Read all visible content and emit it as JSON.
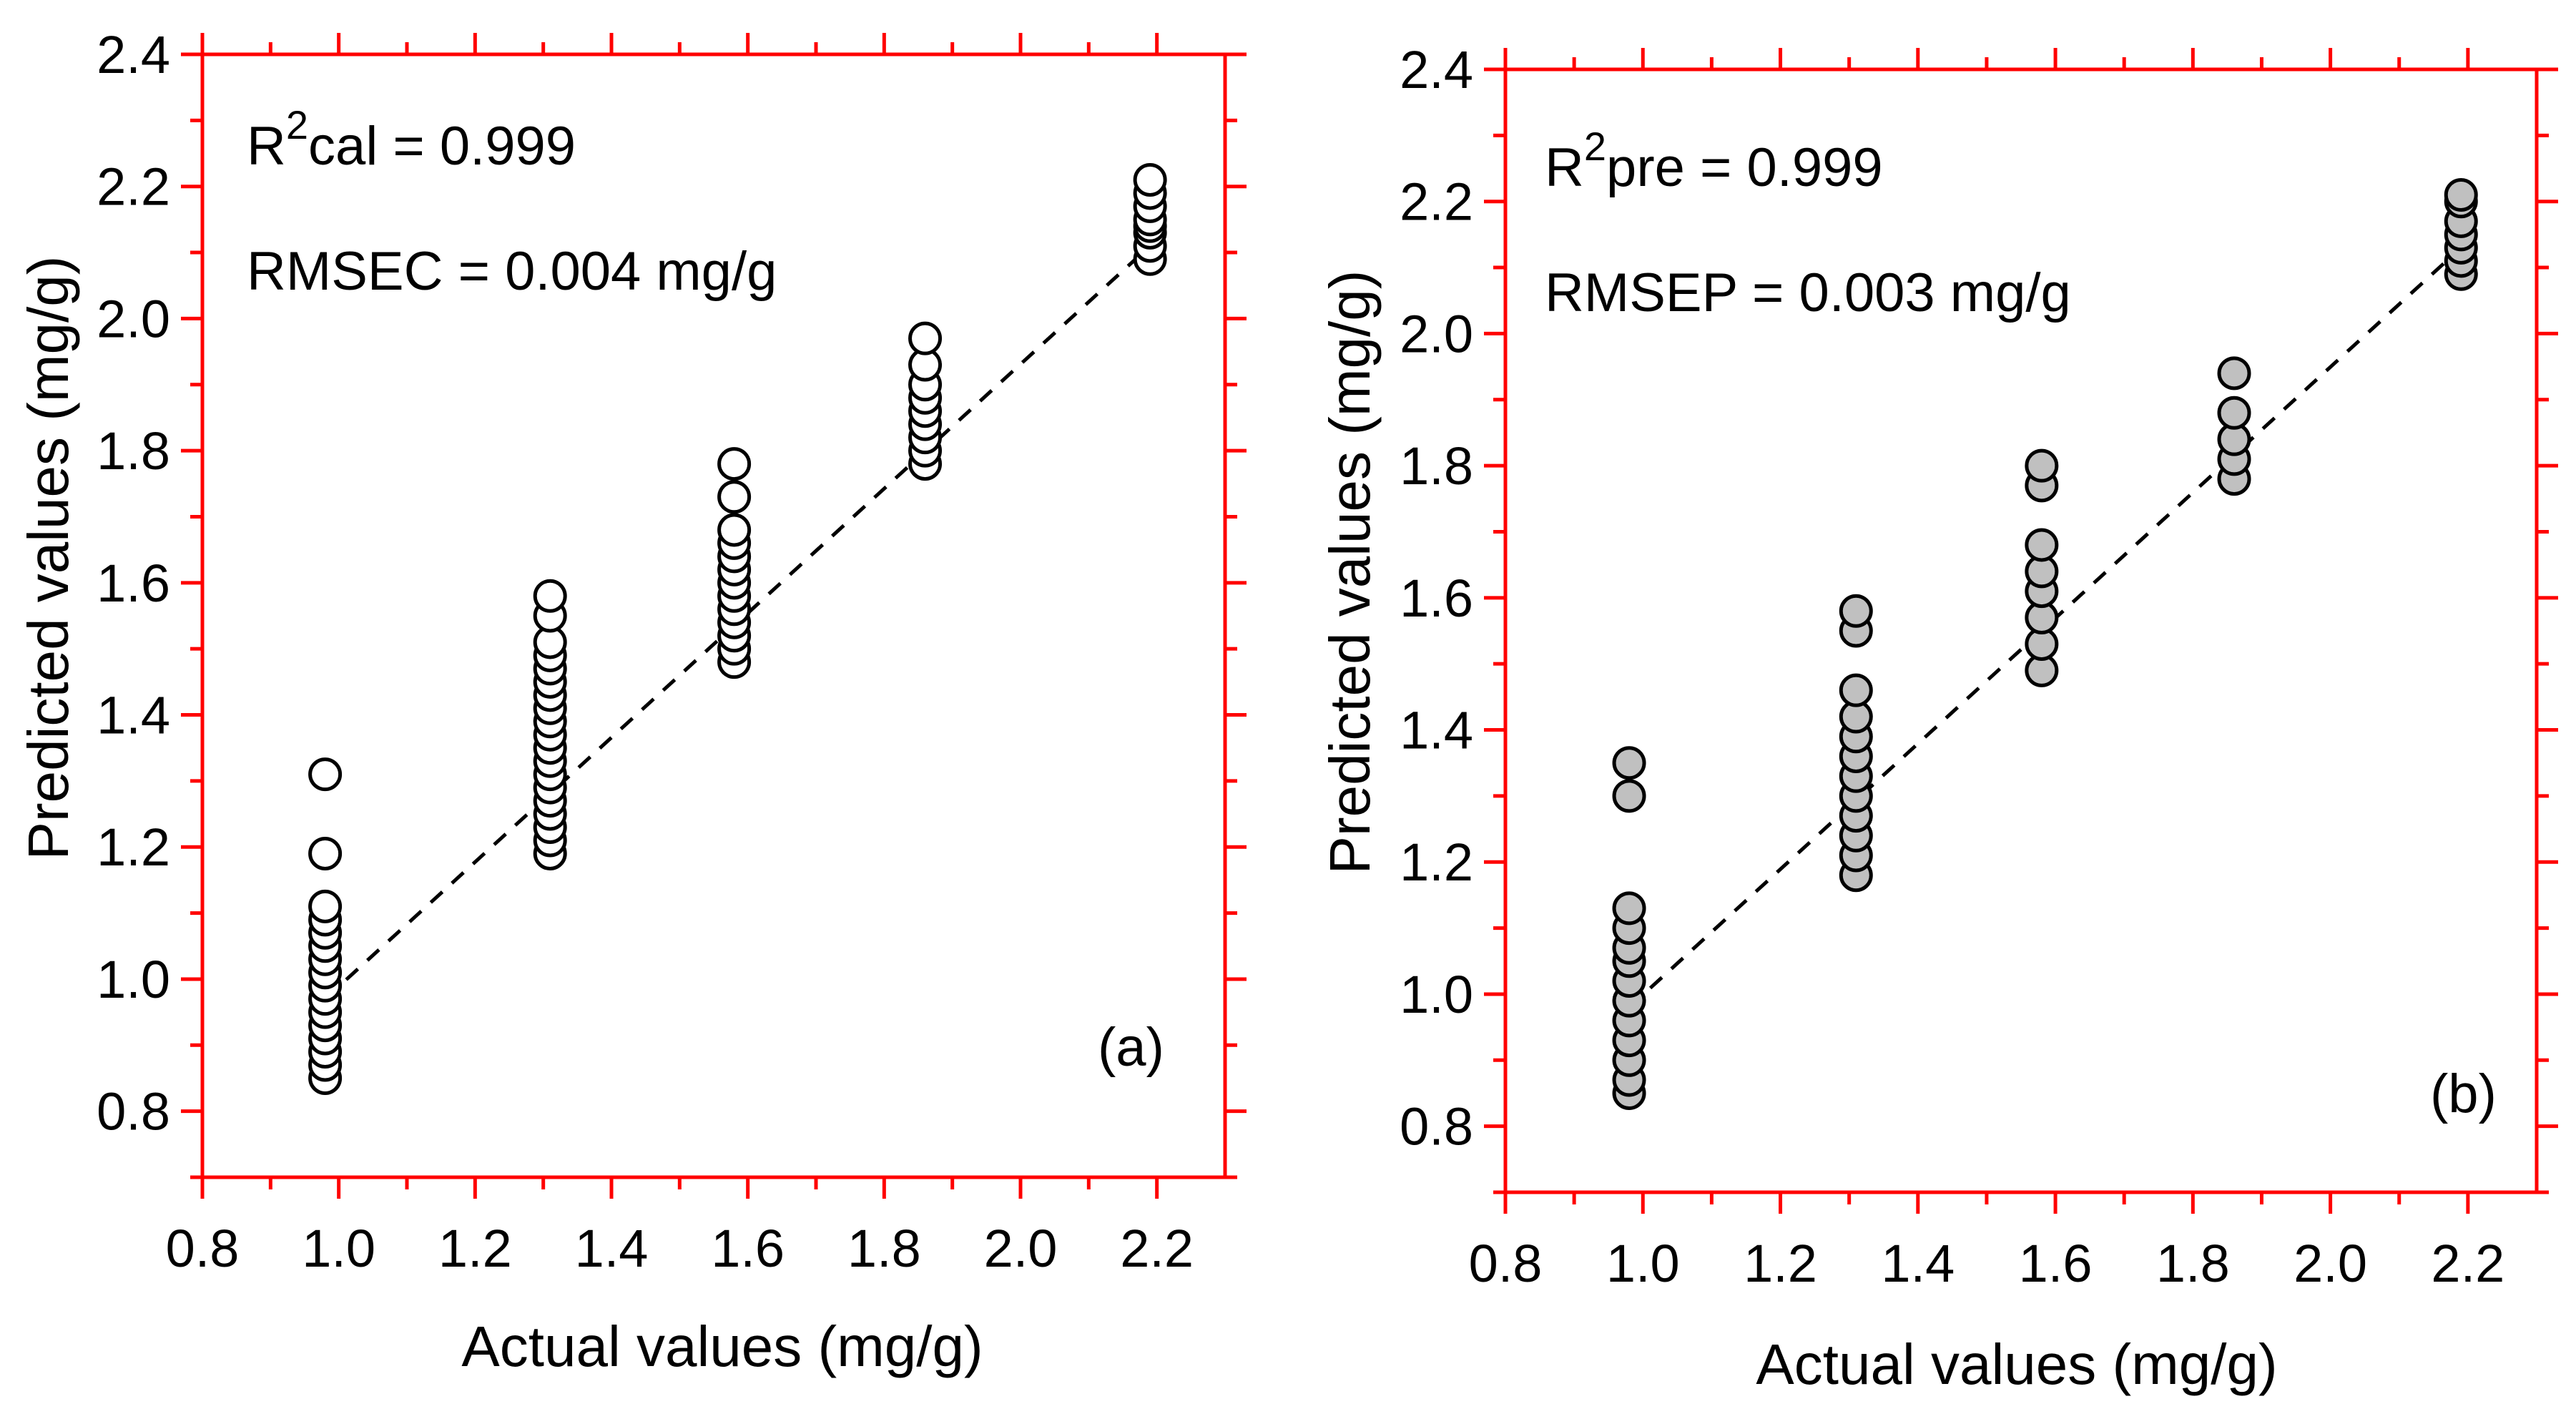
{
  "colors": {
    "frame": "#ff0000",
    "text": "#000000",
    "open_marker_fill": "#ffffff",
    "filled_marker_fill": "#c0c0c0",
    "fit_line": "#000000"
  },
  "chart_data": [
    {
      "type": "scatter",
      "panel_label": "(a)",
      "xlabel": "Actual values (mg/g)",
      "ylabel": "Predicted values (mg/g)",
      "xlim": [
        0.8,
        2.3
      ],
      "ylim": [
        0.7,
        2.4
      ],
      "xticks": [
        "0.8",
        "1.0",
        "1.2",
        "1.4",
        "1.6",
        "1.8",
        "2.0",
        "2.2"
      ],
      "yticks": [
        "0.8",
        "1.0",
        "1.2",
        "1.4",
        "1.6",
        "1.8",
        "2.0",
        "2.2",
        "2.4"
      ],
      "annotation": {
        "r2_base": "R",
        "r2_sup": "2",
        "r2_sub": "cal",
        "r2_value": " = 0.999",
        "rmse": "RMSEC = 0.004 mg/g"
      },
      "marker_style": "open",
      "fit_line": {
        "x": [
          0.98,
          2.19
        ],
        "y": [
          0.97,
          2.11
        ]
      },
      "series": [
        {
          "x": 0.98,
          "y": [
            0.85,
            0.87,
            0.89,
            0.91,
            0.93,
            0.95,
            0.97,
            0.99,
            1.01,
            1.03,
            1.05,
            1.07,
            1.09,
            1.11,
            1.19,
            1.31
          ]
        },
        {
          "x": 1.31,
          "y": [
            1.19,
            1.21,
            1.23,
            1.25,
            1.27,
            1.29,
            1.31,
            1.33,
            1.35,
            1.37,
            1.39,
            1.41,
            1.43,
            1.45,
            1.47,
            1.49,
            1.51,
            1.55,
            1.58
          ]
        },
        {
          "x": 1.58,
          "y": [
            1.48,
            1.5,
            1.52,
            1.54,
            1.56,
            1.58,
            1.6,
            1.62,
            1.64,
            1.66,
            1.68,
            1.73,
            1.78
          ]
        },
        {
          "x": 1.86,
          "y": [
            1.78,
            1.8,
            1.82,
            1.84,
            1.86,
            1.88,
            1.9,
            1.93,
            1.97
          ]
        },
        {
          "x": 2.19,
          "y": [
            2.09,
            2.11,
            2.13,
            2.14,
            2.15,
            2.17,
            2.19,
            2.21
          ]
        }
      ]
    },
    {
      "type": "scatter",
      "panel_label": "(b)",
      "xlabel": "Actual values (mg/g)",
      "ylabel": "Predicted values (mg/g)",
      "xlim": [
        0.8,
        2.3
      ],
      "ylim": [
        0.7,
        2.4
      ],
      "xticks": [
        "0.8",
        "1.0",
        "1.2",
        "1.4",
        "1.6",
        "1.8",
        "2.0",
        "2.2"
      ],
      "yticks": [
        "0.8",
        "1.0",
        "1.2",
        "1.4",
        "1.6",
        "1.8",
        "2.0",
        "2.2",
        "2.4"
      ],
      "annotation": {
        "r2_base": "R",
        "r2_sup": "2",
        "r2_sub": "pre",
        "r2_value": " = 0.999",
        "rmse": "RMSEP = 0.003 mg/g"
      },
      "marker_style": "filled",
      "fit_line": {
        "x": [
          0.98,
          2.19
        ],
        "y": [
          0.98,
          2.13
        ]
      },
      "series": [
        {
          "x": 0.98,
          "y": [
            0.85,
            0.87,
            0.9,
            0.93,
            0.96,
            0.99,
            1.02,
            1.05,
            1.07,
            1.1,
            1.13,
            1.3,
            1.35
          ]
        },
        {
          "x": 1.31,
          "y": [
            1.18,
            1.21,
            1.24,
            1.27,
            1.3,
            1.33,
            1.36,
            1.39,
            1.42,
            1.46,
            1.55,
            1.58
          ]
        },
        {
          "x": 1.58,
          "y": [
            1.49,
            1.53,
            1.57,
            1.61,
            1.64,
            1.68,
            1.77,
            1.8
          ]
        },
        {
          "x": 1.86,
          "y": [
            1.78,
            1.81,
            1.84,
            1.88,
            1.94
          ]
        },
        {
          "x": 2.19,
          "y": [
            2.09,
            2.11,
            2.13,
            2.15,
            2.17,
            2.2,
            2.21
          ]
        }
      ]
    }
  ]
}
